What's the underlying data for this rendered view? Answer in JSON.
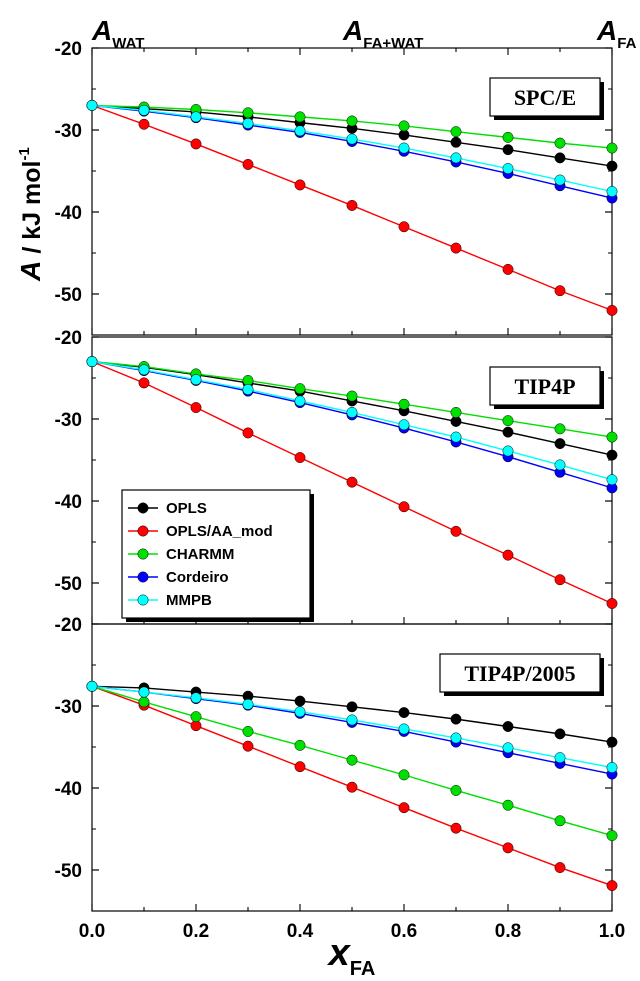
{
  "chart_data": {
    "type": "line",
    "top_labels": [
      {
        "main": "A",
        "sub": "WAT"
      },
      {
        "main": "A",
        "sub": "FA+WAT"
      },
      {
        "main": "A",
        "sub": "FA"
      }
    ],
    "xlabel": {
      "main": "x",
      "sub": "FA"
    },
    "ylabel": {
      "main": "A",
      "rest": " / kJ mol",
      "sup": "-1"
    },
    "x": [
      0.0,
      0.1,
      0.2,
      0.3,
      0.4,
      0.5,
      0.6,
      0.7,
      0.8,
      0.9,
      1.0
    ],
    "xlim": [
      0.0,
      1.0
    ],
    "xticks": [
      "0.0",
      "0.2",
      "0.4",
      "0.6",
      "0.8",
      "1.0"
    ],
    "legend_position": "left, middle panel",
    "series_styles": [
      {
        "name": "OPLS",
        "color": "#000000"
      },
      {
        "name": "OPLS/AA_mod",
        "color": "#ff0000"
      },
      {
        "name": "CHARMM",
        "color": "#00e000"
      },
      {
        "name": "Cordeiro",
        "color": "#0000ff"
      },
      {
        "name": "MMPB",
        "color": "#00ffff"
      }
    ],
    "panels": [
      {
        "label": "SPC/E",
        "ylim": [
          -55,
          -20
        ],
        "yticks": [
          "-20",
          "-30",
          "-40",
          "-50"
        ],
        "series": [
          {
            "name": "OPLS",
            "values": [
              -27.0,
              -27.4,
              -27.8,
              -28.4,
              -29.1,
              -29.8,
              -30.6,
              -31.5,
              -32.4,
              -33.4,
              -34.4
            ]
          },
          {
            "name": "OPLS/AA_mod",
            "values": [
              -27.0,
              -29.3,
              -31.7,
              -34.2,
              -36.7,
              -39.2,
              -41.8,
              -44.4,
              -47.0,
              -49.6,
              -52.0
            ]
          },
          {
            "name": "CHARMM",
            "values": [
              -27.0,
              -27.2,
              -27.5,
              -27.9,
              -28.4,
              -28.9,
              -29.5,
              -30.2,
              -30.9,
              -31.6,
              -32.2
            ]
          },
          {
            "name": "Cordeiro",
            "values": [
              -27.0,
              -27.7,
              -28.5,
              -29.4,
              -30.3,
              -31.4,
              -32.6,
              -33.9,
              -35.3,
              -36.8,
              -38.3
            ]
          },
          {
            "name": "MMPB",
            "values": [
              -27.0,
              -27.6,
              -28.4,
              -29.2,
              -30.1,
              -31.1,
              -32.2,
              -33.4,
              -34.7,
              -36.1,
              -37.5
            ]
          }
        ]
      },
      {
        "label": "TIP4P",
        "ylim": [
          -55,
          -20
        ],
        "yticks": [
          "-20",
          "-30",
          "-40",
          "-50"
        ],
        "series": [
          {
            "name": "OPLS",
            "values": [
              -23.0,
              -23.7,
              -24.6,
              -25.6,
              -26.6,
              -27.8,
              -29.0,
              -30.3,
              -31.6,
              -33.0,
              -34.4
            ]
          },
          {
            "name": "OPLS/AA_mod",
            "values": [
              -23.0,
              -25.6,
              -28.6,
              -31.7,
              -34.7,
              -37.7,
              -40.7,
              -43.7,
              -46.6,
              -49.6,
              -52.5
            ]
          },
          {
            "name": "CHARMM",
            "values": [
              -23.0,
              -23.6,
              -24.5,
              -25.3,
              -26.3,
              -27.2,
              -28.2,
              -29.2,
              -30.2,
              -31.2,
              -32.2
            ]
          },
          {
            "name": "Cordeiro",
            "values": [
              -23.0,
              -24.1,
              -25.3,
              -26.6,
              -28.0,
              -29.5,
              -31.1,
              -32.8,
              -34.6,
              -36.5,
              -38.4
            ]
          },
          {
            "name": "MMPB",
            "values": [
              -23.0,
              -24.0,
              -25.2,
              -26.4,
              -27.8,
              -29.2,
              -30.7,
              -32.2,
              -33.9,
              -35.6,
              -37.4
            ]
          }
        ]
      },
      {
        "label": "TIP4P/2005",
        "ylim": [
          -55,
          -20
        ],
        "yticks": [
          "-20",
          "-30",
          "-40",
          "-50"
        ],
        "series": [
          {
            "name": "OPLS",
            "values": [
              -27.6,
              -27.8,
              -28.3,
              -28.8,
              -29.4,
              -30.1,
              -30.8,
              -31.6,
              -32.5,
              -33.4,
              -34.4
            ]
          },
          {
            "name": "OPLS/AA_mod",
            "values": [
              -27.6,
              -29.9,
              -32.4,
              -34.9,
              -37.4,
              -39.9,
              -42.4,
              -44.9,
              -47.3,
              -49.7,
              -51.9
            ]
          },
          {
            "name": "CHARMM",
            "values": [
              -27.6,
              -29.5,
              -31.3,
              -33.1,
              -34.8,
              -36.6,
              -38.4,
              -40.3,
              -42.1,
              -44.0,
              -45.8
            ]
          },
          {
            "name": "Cordeiro",
            "values": [
              -27.6,
              -28.3,
              -29.1,
              -29.9,
              -30.9,
              -32.0,
              -33.1,
              -34.4,
              -35.7,
              -37.0,
              -38.3
            ]
          },
          {
            "name": "MMPB",
            "values": [
              -27.6,
              -28.3,
              -29.0,
              -29.8,
              -30.7,
              -31.7,
              -32.8,
              -33.9,
              -35.1,
              -36.3,
              -37.5
            ]
          }
        ]
      }
    ]
  }
}
